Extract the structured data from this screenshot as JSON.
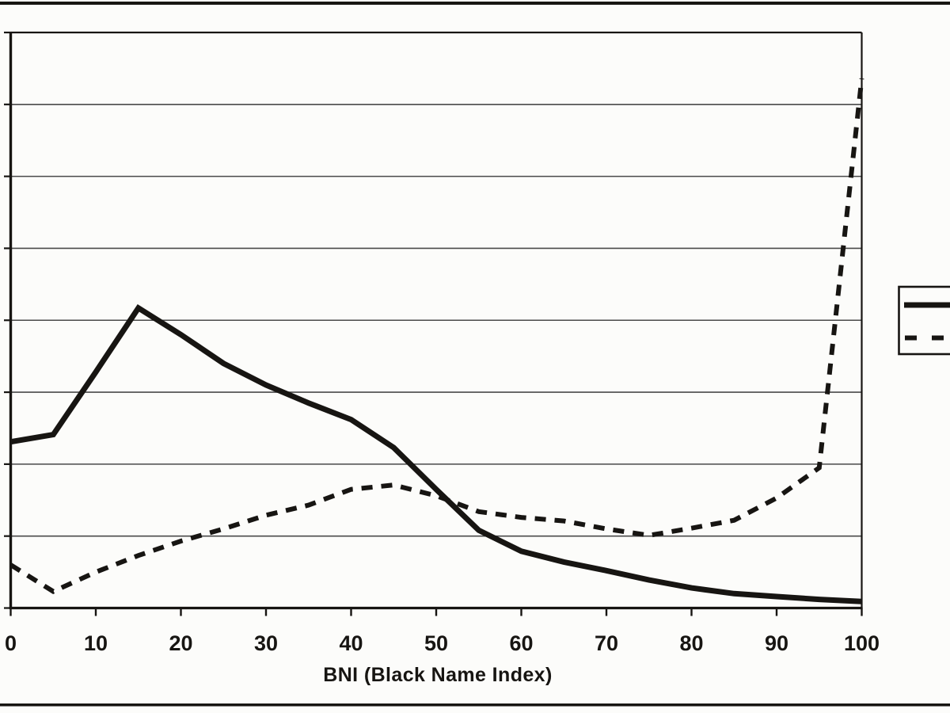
{
  "colors": {
    "ink": "#171512",
    "paper": "#fcfcfa",
    "grid": "#4a4a4a"
  },
  "chart_data": {
    "type": "line",
    "title": "",
    "xlabel": "BNI (Black Name Index)",
    "ylabel": "",
    "xlim": [
      0,
      100
    ],
    "ylim": [
      0,
      8
    ],
    "grid": true,
    "y_gridline_interval": 1,
    "y_tick_labels_visible": false,
    "legend_position": "right-outside, box clipped at image edge, labels not visible",
    "x_ticks": [
      0,
      10,
      20,
      30,
      40,
      50,
      60,
      70,
      80,
      90,
      100
    ],
    "x": [
      0,
      5,
      10,
      15,
      20,
      25,
      30,
      35,
      40,
      45,
      50,
      55,
      60,
      65,
      70,
      75,
      80,
      85,
      90,
      95,
      100
    ],
    "series": [
      {
        "name": "solid-line",
        "line_style": "solid",
        "color": "#171512",
        "values": [
          2.31,
          2.41,
          3.28,
          4.17,
          3.8,
          3.4,
          3.1,
          2.85,
          2.62,
          2.23,
          1.65,
          1.08,
          0.79,
          0.64,
          0.52,
          0.39,
          0.28,
          0.2,
          0.16,
          0.12,
          0.09
        ]
      },
      {
        "name": "dashed-line",
        "line_style": "dashed",
        "color": "#171512",
        "values": [
          0.6,
          0.23,
          0.5,
          0.73,
          0.93,
          1.1,
          1.29,
          1.43,
          1.65,
          1.71,
          1.56,
          1.34,
          1.26,
          1.21,
          1.1,
          1.01,
          1.11,
          1.22,
          1.53,
          1.95,
          7.36
        ]
      }
    ]
  }
}
